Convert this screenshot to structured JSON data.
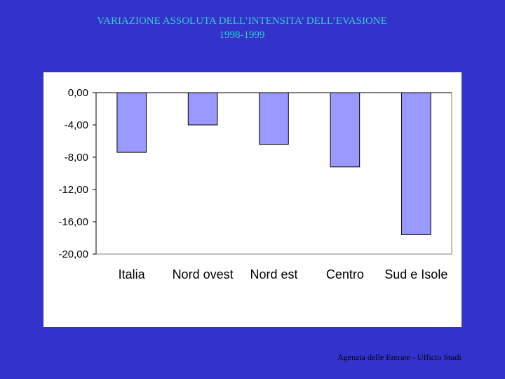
{
  "slide": {
    "title_line1": "VARIAZIONE ASSOLUTA DELL’INTENSITA’ DELL’EVASIONE",
    "title_line2": "1998-1999",
    "footer": "Agenzia delle Entrate - Ufficio Studi"
  },
  "colors": {
    "background": "#3333CC",
    "title": "#33CCCC",
    "bar_fill": "#9999FF",
    "bar_stroke": "#000000",
    "plot_border": "#808080",
    "gridline": "#000000"
  },
  "chart_data": {
    "type": "bar",
    "categories": [
      "Italia",
      "Nord ovest",
      "Nord est",
      "Centro",
      "Sud e Isole"
    ],
    "values": [
      -7.4,
      -4.0,
      -6.4,
      -9.2,
      -17.6
    ],
    "ylim": [
      -20,
      0
    ],
    "yticks": [
      0,
      -4,
      -8,
      -12,
      -16,
      -20
    ],
    "ytick_labels": [
      "0,00",
      "-4,00",
      "-8,00",
      "-12,00",
      "-16,00",
      "-20,00"
    ],
    "grid": false,
    "legend": "none"
  }
}
